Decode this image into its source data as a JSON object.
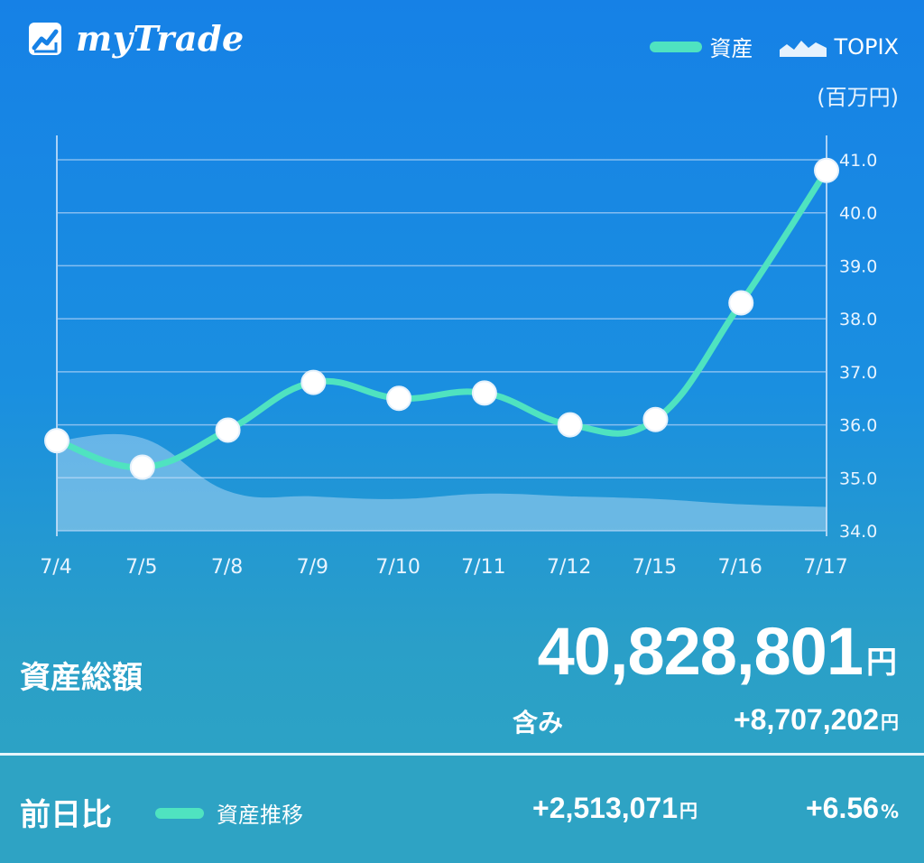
{
  "app": {
    "name": "myTrade"
  },
  "legend": {
    "asset_label": "資産",
    "topix_label": "TOPIX",
    "asset_color": "#4fe3c0",
    "topix_color": "#cfe6fa"
  },
  "chart_unit": "(百万円)",
  "chart_data": {
    "type": "line",
    "categories": [
      "7/4",
      "7/5",
      "7/8",
      "7/9",
      "7/10",
      "7/11",
      "7/12",
      "7/15",
      "7/16",
      "7/17"
    ],
    "y_ticks": [
      "41.0",
      "40.0",
      "39.0",
      "38.0",
      "37.0",
      "36.0",
      "35.0",
      "34.0"
    ],
    "ylim": [
      34.0,
      41.0
    ],
    "y_axis_position": "right",
    "grid": true,
    "legend_position": "top-right",
    "series": [
      {
        "name": "資産",
        "type": "line",
        "values": [
          35.7,
          35.2,
          35.9,
          36.8,
          36.5,
          36.6,
          36.0,
          36.1,
          38.3,
          40.8
        ],
        "color": "#4fe3c0"
      },
      {
        "name": "TOPIX",
        "type": "area",
        "values": [
          35.7,
          35.75,
          34.75,
          34.65,
          34.6,
          34.7,
          34.65,
          34.6,
          34.5,
          34.45
        ],
        "color": "#cfe6fa"
      }
    ]
  },
  "summary": {
    "total_label": "資産総額",
    "total_value": "40,828,801",
    "yen": "円",
    "includes_label": "含み",
    "includes_value": "+8,707,202"
  },
  "footer": {
    "label": "前日比",
    "legend_label": "資産推移",
    "change_value": "+2,513,071",
    "change_pct": "+6.56",
    "pct_symbol": "%"
  }
}
